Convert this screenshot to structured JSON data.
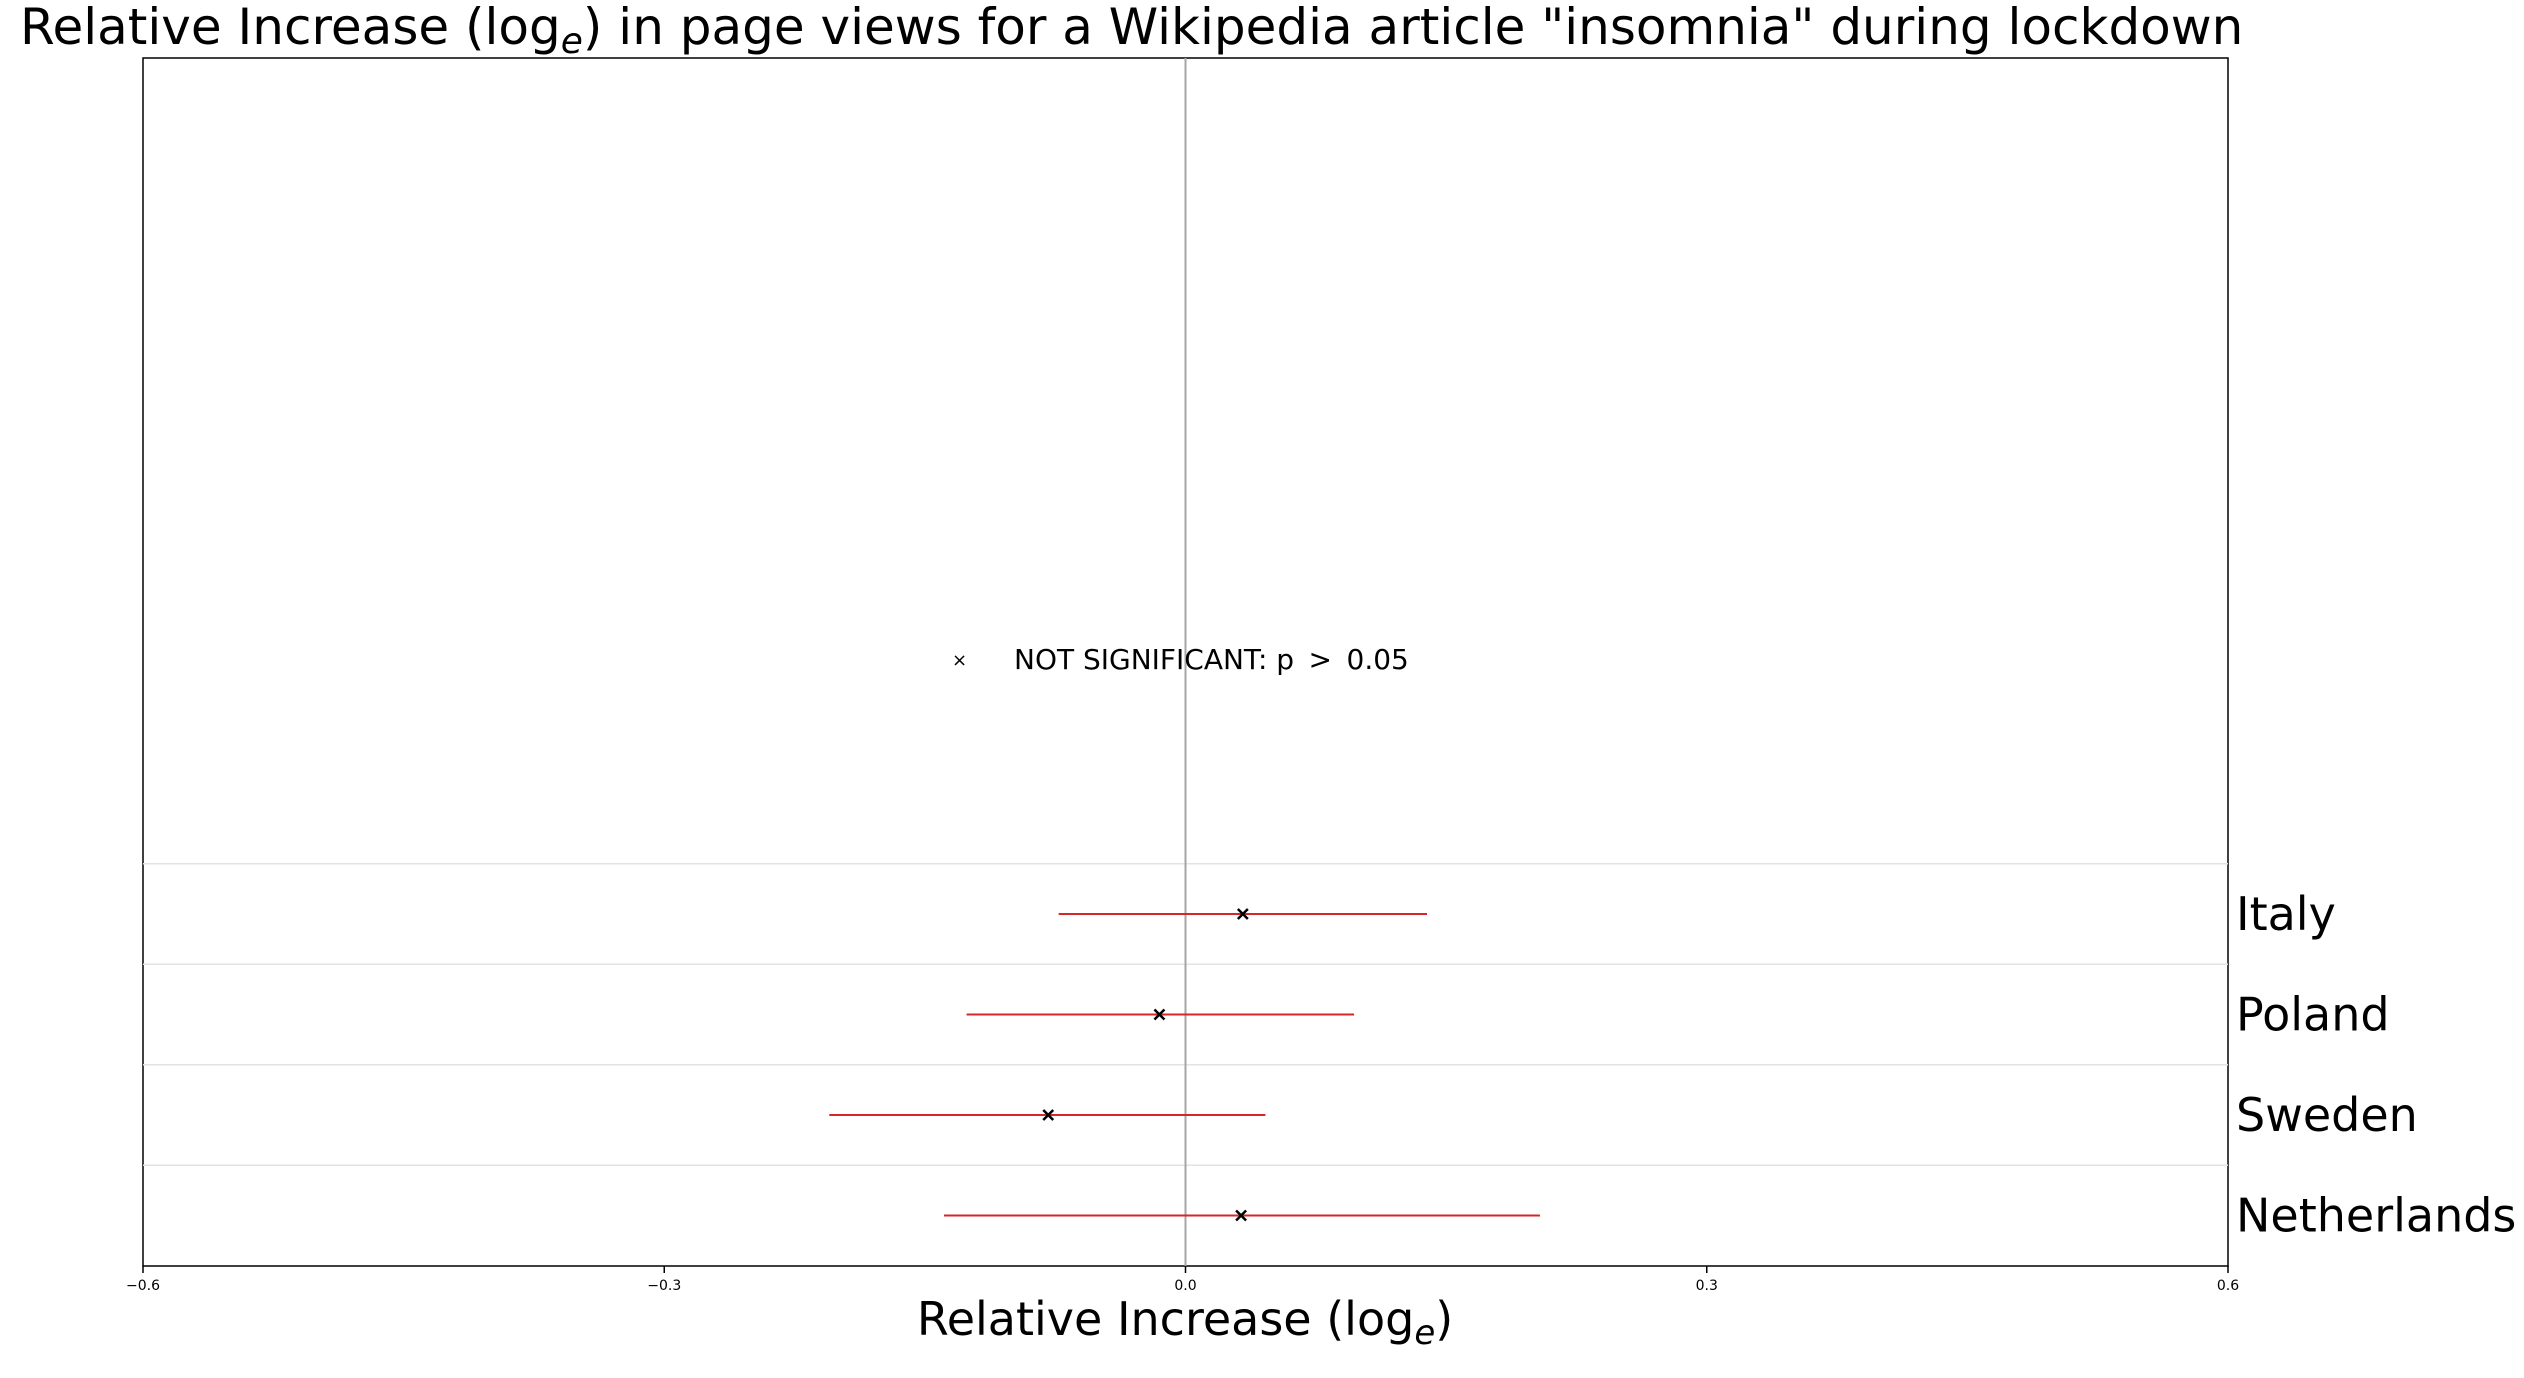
{
  "chart_data": {
    "type": "scatter",
    "title": {
      "prefix": "Relative Increase (log",
      "subscript": "e",
      "suffix": ") in page views for a Wikipedia article \"insomnia\" during lockdown"
    },
    "xlabel": {
      "prefix": "Relative Increase (log",
      "subscript": "e",
      "suffix": ")"
    },
    "ylabel": "",
    "xlim": [
      -0.6,
      0.6
    ],
    "xticks": [
      -0.6,
      -0.3,
      0.0,
      0.3,
      0.6
    ],
    "xtick_labels": [
      "−0.6",
      "−0.3",
      "0.0",
      "0.3",
      "0.6"
    ],
    "grid": "horizontal separators between countries",
    "legend": {
      "placement": "center",
      "entries": [
        {
          "marker": "×",
          "label": "NOT SIGNIFICANT: p  >  0.05"
        }
      ]
    },
    "series": [
      {
        "marker": "x",
        "errorbar_color": "#d62728",
        "points": [
          {
            "label": "Italy",
            "value": 0.033,
            "ci_low": -0.073,
            "ci_high": 0.139
          },
          {
            "label": "Poland",
            "value": -0.015,
            "ci_low": -0.126,
            "ci_high": 0.097
          },
          {
            "label": "Sweden",
            "value": -0.079,
            "ci_low": -0.205,
            "ci_high": 0.046
          },
          {
            "label": "Netherlands",
            "value": 0.032,
            "ci_low": -0.139,
            "ci_high": 0.204
          }
        ]
      }
    ],
    "colors": {
      "errorbar": "#d62728",
      "marker": "#000000",
      "zero_line": "#a6a6a6",
      "grid": "#e3e3e3",
      "axes": "#000000"
    }
  }
}
